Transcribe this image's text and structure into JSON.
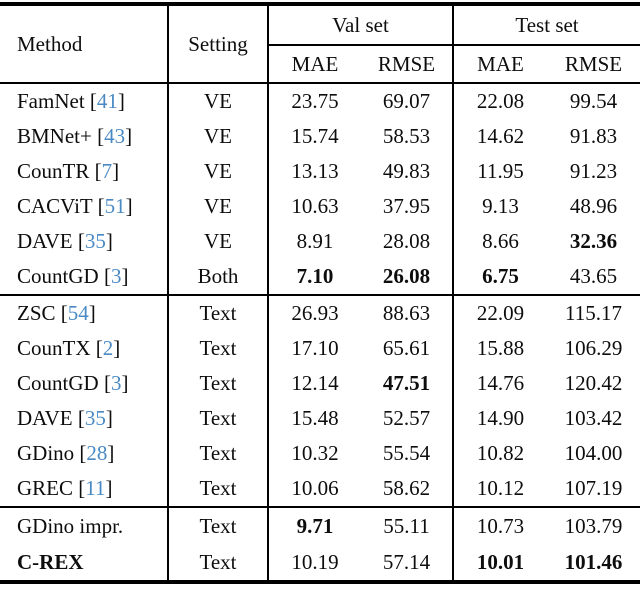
{
  "table": {
    "headers": {
      "method": "Method",
      "setting": "Setting",
      "val_set": "Val set",
      "test_set": "Test set",
      "val_mae": "MAE",
      "val_rmse": "RMSE",
      "test_mae": "MAE",
      "test_rmse": "RMSE"
    },
    "citation_brackets": {
      "open": "[",
      "close": "]"
    },
    "groups": [
      {
        "rows": [
          {
            "method": "FamNet",
            "cite": "41",
            "setting": "VE",
            "val_mae": "23.75",
            "val_rmse": "69.07",
            "test_mae": "22.08",
            "test_rmse": "99.54",
            "bold": []
          },
          {
            "method": "BMNet+",
            "cite": "43",
            "setting": "VE",
            "val_mae": "15.74",
            "val_rmse": "58.53",
            "test_mae": "14.62",
            "test_rmse": "91.83",
            "bold": []
          },
          {
            "method": "CounTR",
            "cite": "7",
            "setting": "VE",
            "val_mae": "13.13",
            "val_rmse": "49.83",
            "test_mae": "11.95",
            "test_rmse": "91.23",
            "bold": []
          },
          {
            "method": "CACViT",
            "cite": "51",
            "setting": "VE",
            "val_mae": "10.63",
            "val_rmse": "37.95",
            "test_mae": "9.13",
            "test_rmse": "48.96",
            "bold": []
          },
          {
            "method": "DAVE",
            "cite": "35",
            "setting": "VE",
            "val_mae": "8.91",
            "val_rmse": "28.08",
            "test_mae": "8.66",
            "test_rmse": "32.36",
            "bold": [
              "test_rmse"
            ]
          },
          {
            "method": "CountGD",
            "cite": "3",
            "setting": "Both",
            "val_mae": "7.10",
            "val_rmse": "26.08",
            "test_mae": "6.75",
            "test_rmse": "43.65",
            "bold": [
              "val_mae",
              "val_rmse",
              "test_mae"
            ]
          }
        ]
      },
      {
        "rows": [
          {
            "method": "ZSC",
            "cite": "54",
            "setting": "Text",
            "val_mae": "26.93",
            "val_rmse": "88.63",
            "test_mae": "22.09",
            "test_rmse": "115.17",
            "bold": []
          },
          {
            "method": "CounTX",
            "cite": "2",
            "setting": "Text",
            "val_mae": "17.10",
            "val_rmse": "65.61",
            "test_mae": "15.88",
            "test_rmse": "106.29",
            "bold": []
          },
          {
            "method": "CountGD",
            "cite": "3",
            "setting": "Text",
            "val_mae": "12.14",
            "val_rmse": "47.51",
            "test_mae": "14.76",
            "test_rmse": "120.42",
            "bold": [
              "val_rmse"
            ]
          },
          {
            "method": "DAVE",
            "cite": "35",
            "setting": "Text",
            "val_mae": "15.48",
            "val_rmse": "52.57",
            "test_mae": "14.90",
            "test_rmse": "103.42",
            "bold": []
          },
          {
            "method": "GDino",
            "cite": "28",
            "setting": "Text",
            "val_mae": "10.32",
            "val_rmse": "55.54",
            "test_mae": "10.82",
            "test_rmse": "104.00",
            "bold": []
          },
          {
            "method": "GREC",
            "cite": "11",
            "setting": "Text",
            "val_mae": "10.06",
            "val_rmse": "58.62",
            "test_mae": "10.12",
            "test_rmse": "107.19",
            "bold": []
          }
        ]
      },
      {
        "rows": [
          {
            "method": "GDino impr.",
            "cite": "",
            "setting": "Text",
            "val_mae": "9.71",
            "val_rmse": "55.11",
            "test_mae": "10.73",
            "test_rmse": "103.79",
            "bold": [
              "val_mae"
            ]
          },
          {
            "method": "C-REX",
            "cite": "",
            "setting": "Text",
            "val_mae": "10.19",
            "val_rmse": "57.14",
            "test_mae": "10.01",
            "test_rmse": "101.46",
            "bold": [
              "test_mae",
              "test_rmse"
            ],
            "method_bold": true
          }
        ]
      }
    ]
  },
  "colors": {
    "citation_blue": "#4a8ac4",
    "text": "#0d0d0d",
    "rule": "#000000",
    "background": "#ffffff"
  }
}
